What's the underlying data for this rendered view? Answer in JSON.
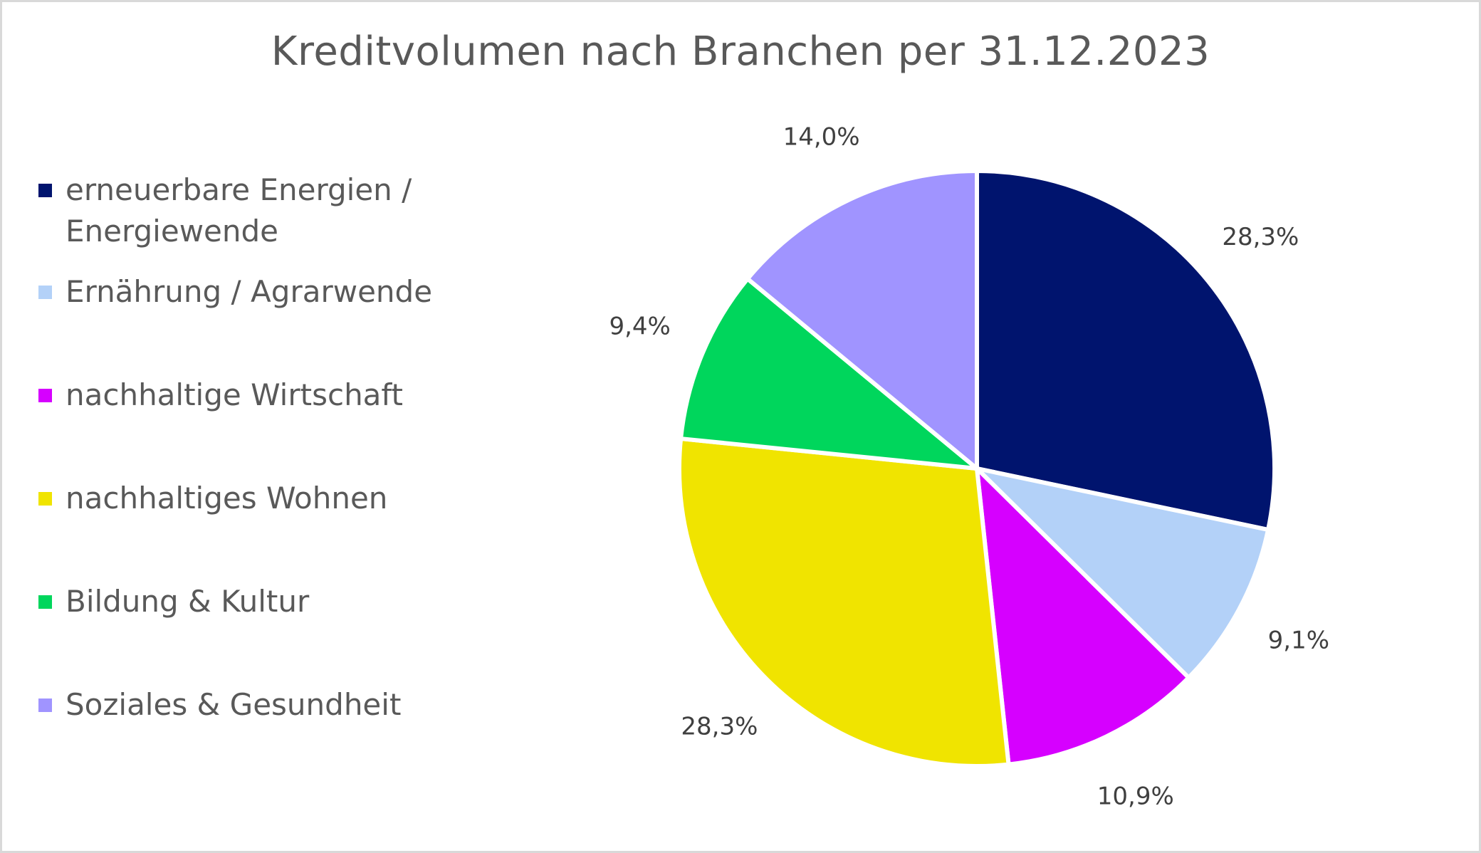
{
  "chart_data": {
    "type": "pie",
    "title": "Kreditvolumen nach Branchen per 31.12.2023",
    "start_angle_deg": 0,
    "direction": "clockwise",
    "legend_position": "left",
    "slices": [
      {
        "label": "erneuerbare Energien / Energiewende",
        "value": 28.3,
        "data_label": "28,3%",
        "color": "#00146e"
      },
      {
        "label": "Ernährung / Agrarwende",
        "value": 9.1,
        "data_label": "9,1%",
        "color": "#b3d1f8"
      },
      {
        "label": "nachhaltige Wirtschaft",
        "value": 10.9,
        "data_label": "10,9%",
        "color": "#d600ff"
      },
      {
        "label": "nachhaltiges Wohnen",
        "value": 28.3,
        "data_label": "28,3%",
        "color": "#f0e400"
      },
      {
        "label": "Bildung & Kultur",
        "value": 9.4,
        "data_label": "9,4%",
        "color": "#00d65c"
      },
      {
        "label": "Soziales & Gesundheit",
        "value": 14.0,
        "data_label": "14,0%",
        "color": "#a094ff"
      }
    ]
  }
}
